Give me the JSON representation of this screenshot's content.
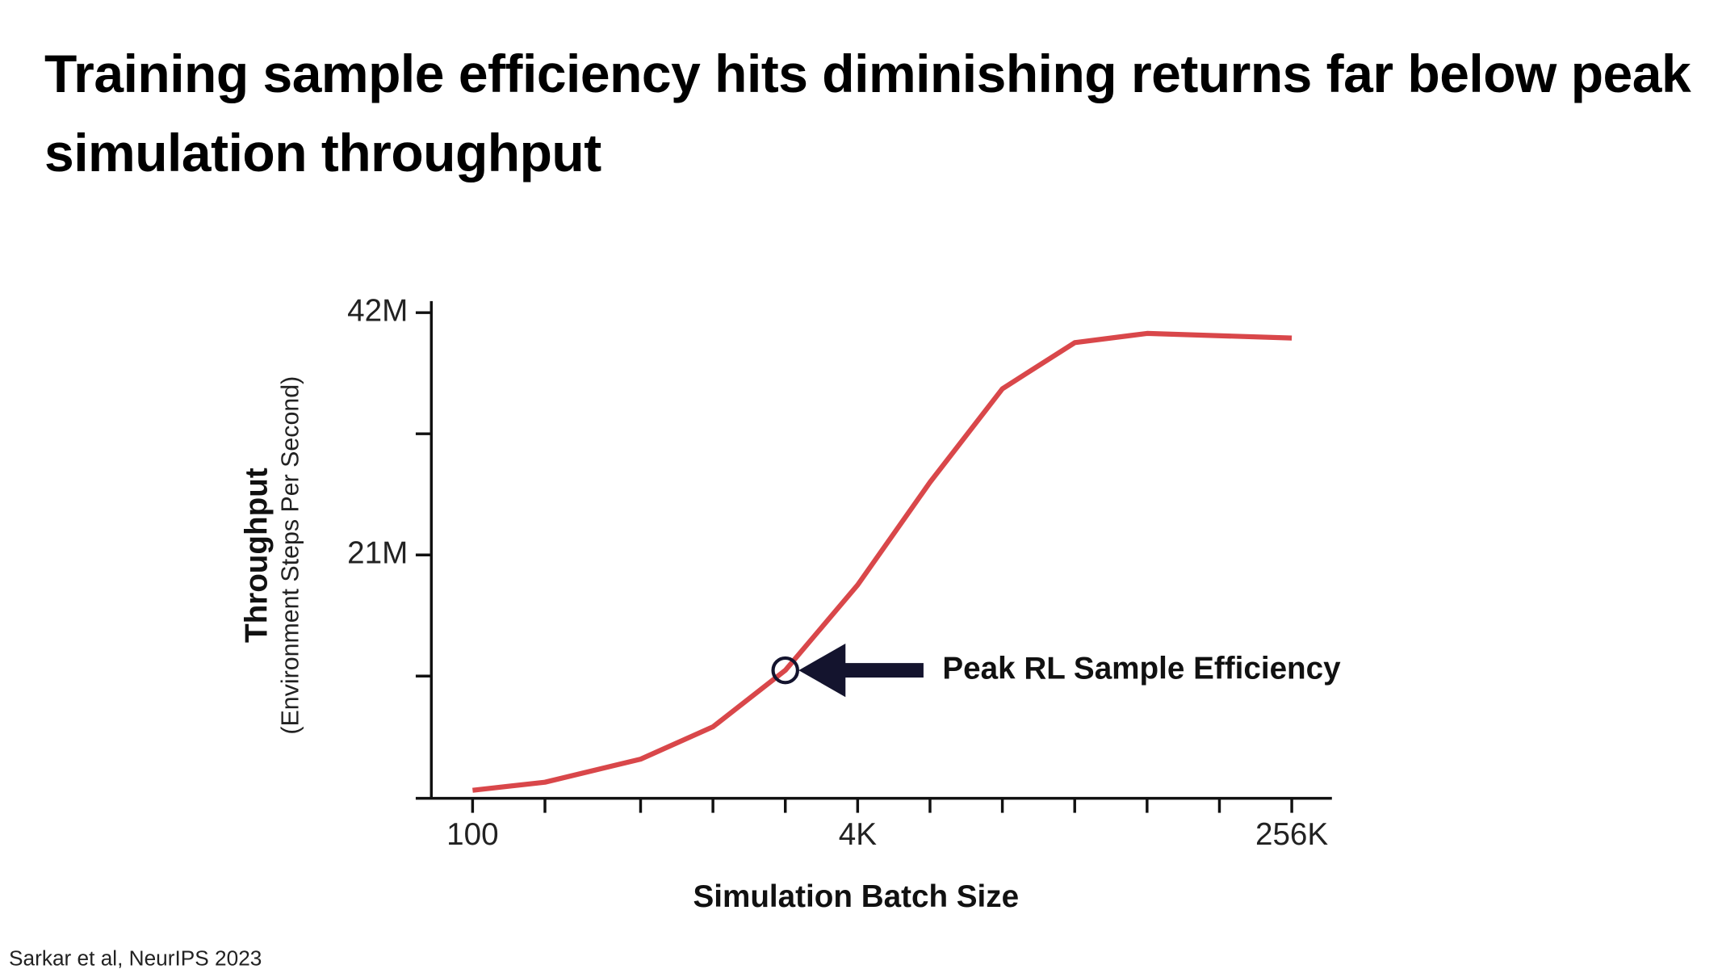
{
  "chart_data": {
    "type": "line",
    "title": "Training sample efficiency hits diminishing returns far below peak simulation throughput",
    "xlabel": "Simulation Batch Size",
    "ylabel": "Throughput",
    "ylabel_sub": "(Environment Steps Per Second)",
    "source": "Sarkar et al, NeurIPS 2023",
    "x": [
      100,
      200,
      500,
      1000,
      2000,
      4000,
      8000,
      16000,
      32000,
      64000,
      256000
    ],
    "series": [
      {
        "name": "Throughput",
        "color": "#d9474a",
        "values": [
          600000,
          1300000,
          3300000,
          6100000,
          11000000,
          18400000,
          27300000,
          35400000,
          39400000,
          40200000,
          39800000
        ]
      }
    ],
    "xscale": "log",
    "xlim": [
      58,
      376000
    ],
    "xticks": [
      100,
      {
        "value": 4000,
        "label": "4K"
      },
      {
        "value": 256000,
        "label": "256K"
      }
    ],
    "xminorticks": [
      200,
      500,
      1000,
      2000,
      8000,
      16000,
      32000,
      64000,
      128000
    ],
    "ylim": [
      0,
      43000000
    ],
    "yticks": [
      {
        "value": 21000000,
        "label": "21M"
      },
      {
        "value": 42000000,
        "label": "42M"
      }
    ],
    "yminorticks": [
      10500000,
      31500000
    ],
    "annotation": {
      "text": "Peak RL Sample Efficiency",
      "x": 2000,
      "y": 11000000
    }
  }
}
